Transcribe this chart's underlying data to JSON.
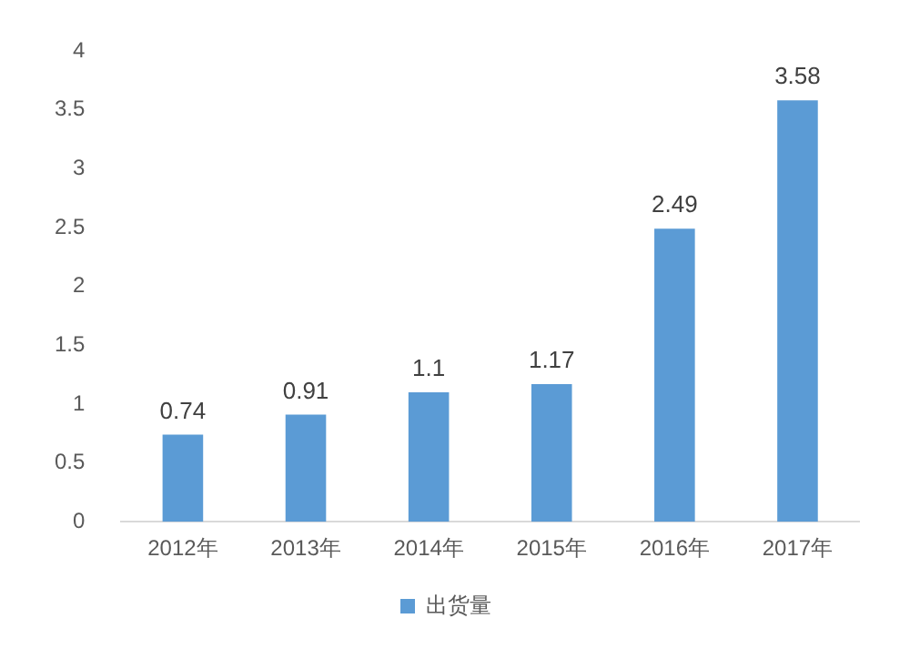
{
  "chart_data": {
    "type": "bar",
    "categories": [
      "2012年",
      "2013年",
      "2014年",
      "2015年",
      "2016年",
      "2017年"
    ],
    "series": [
      {
        "name": "出货量",
        "color": "#5b9bd5",
        "values": [
          0.74,
          0.91,
          1.1,
          1.17,
          2.49,
          3.58
        ]
      }
    ],
    "ylim": [
      0,
      4
    ],
    "yticks": [
      0,
      0.5,
      1,
      1.5,
      2,
      2.5,
      3,
      3.5,
      4
    ],
    "grid": false,
    "legend": "bottom",
    "data_labels": true
  }
}
